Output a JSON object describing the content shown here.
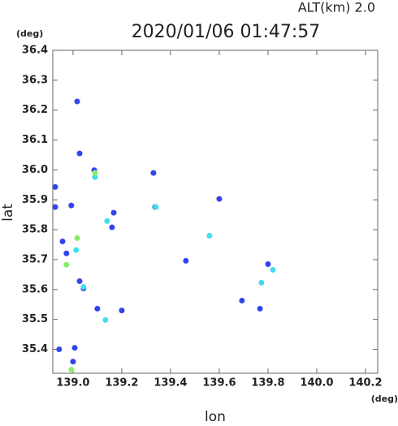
{
  "chart_data": {
    "type": "scatter",
    "title": "2020/01/06 01:47:57",
    "subtitle": "ALT(km) 2.0",
    "x_label": "lon",
    "y_label": "lat",
    "x_unit": "(deg)",
    "y_unit": "(deg)",
    "xlim": [
      138.917,
      140.25
    ],
    "ylim": [
      35.32,
      36.4
    ],
    "xticks": [
      {
        "value": 139,
        "label": "139.0"
      },
      139.2,
      139.4,
      139.6,
      139.8,
      {
        "value": 140,
        "label": "140.0"
      },
      140.2
    ],
    "yticks": [
      35.4,
      35.5,
      35.6,
      35.7,
      35.8,
      {
        "value": 35.9,
        "label": "35.9"
      },
      {
        "value": 36,
        "label": "36.0"
      },
      36.1,
      36.2,
      36.3,
      36.4
    ],
    "series": [
      {
        "color": "#3344ee",
        "x": [
          139.017,
          139.027,
          139.087,
          139.33,
          138.927,
          138.993,
          138.927,
          139.6,
          139.337,
          138.957,
          138.973,
          139.463,
          139.027,
          139.043,
          139.1,
          138.943,
          139.0,
          139.007,
          139.2,
          139.693,
          139.8,
          139.767,
          139.16,
          139.167
        ],
        "y": [
          36.229,
          36.055,
          35.999,
          35.99,
          35.943,
          35.881,
          35.876,
          35.903,
          35.876,
          35.761,
          35.721,
          35.696,
          35.628,
          35.604,
          35.536,
          35.4,
          35.359,
          35.405,
          35.53,
          35.563,
          35.685,
          35.536,
          35.808,
          35.857
        ]
      },
      {
        "color": "#44ddee",
        "x": [
          139.09,
          139.34,
          139.56,
          139.013,
          139.043,
          139.133,
          139.773,
          139.82,
          139.14
        ],
        "y": [
          35.976,
          35.876,
          35.78,
          35.732,
          35.609,
          35.498,
          35.623,
          35.666,
          35.829
        ]
      },
      {
        "color": "#88ee66",
        "x": [
          139.017,
          138.973,
          139.09,
          138.993
        ],
        "y": [
          35.772,
          35.683,
          35.99,
          35.332
        ]
      }
    ]
  }
}
